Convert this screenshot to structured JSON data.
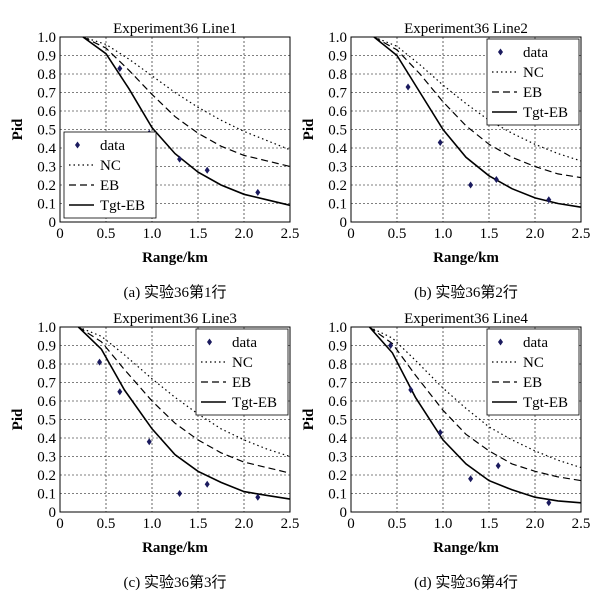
{
  "chart_data": [
    {
      "type": "line",
      "title": "Experiment36 Line1",
      "caption": "(a) 实验36第1行",
      "xlabel": "Range/km",
      "ylabel": "Pid",
      "xlim": [
        0,
        2.5
      ],
      "ylim": [
        0,
        1.0
      ],
      "xticks": [
        "0",
        "0.5",
        "1.0",
        "1.5",
        "2.0",
        "2.5"
      ],
      "yticks": [
        "0",
        "0.1",
        "0.2",
        "0.3",
        "0.4",
        "0.5",
        "0.6",
        "0.7",
        "0.8",
        "0.9",
        "1.0"
      ],
      "grid": true,
      "legend_position": "bottom-left",
      "legend": [
        "data",
        "NC",
        "EB",
        "Tgt-EB"
      ],
      "data_points": {
        "name": "data",
        "x": [
          0.65,
          0.97,
          1.3,
          1.6,
          2.15
        ],
        "y": [
          0.83,
          0.48,
          0.34,
          0.28,
          0.16
        ]
      },
      "series": [
        {
          "name": "NC",
          "style": "dotted",
          "x": [
            0.25,
            0.5,
            0.75,
            1.0,
            1.25,
            1.5,
            1.75,
            2.0,
            2.25,
            2.5
          ],
          "y": [
            1.0,
            0.96,
            0.88,
            0.79,
            0.7,
            0.62,
            0.55,
            0.49,
            0.44,
            0.39
          ]
        },
        {
          "name": "EB",
          "style": "dashed",
          "x": [
            0.25,
            0.5,
            0.75,
            1.0,
            1.25,
            1.5,
            1.75,
            2.0,
            2.25,
            2.5
          ],
          "y": [
            1.0,
            0.94,
            0.82,
            0.69,
            0.57,
            0.48,
            0.41,
            0.36,
            0.33,
            0.3
          ]
        },
        {
          "name": "Tgt-EB",
          "style": "solid",
          "x": [
            0.25,
            0.5,
            0.75,
            1.0,
            1.25,
            1.5,
            1.75,
            2.0,
            2.25,
            2.5
          ],
          "y": [
            1.0,
            0.91,
            0.72,
            0.51,
            0.37,
            0.27,
            0.2,
            0.15,
            0.12,
            0.09
          ]
        }
      ]
    },
    {
      "type": "line",
      "title": "Experiment36 Line2",
      "caption": "(b) 实验36第2行",
      "xlabel": "Range/km",
      "ylabel": "Pid",
      "xlim": [
        0,
        2.5
      ],
      "ylim": [
        0,
        1.0
      ],
      "xticks": [
        "0",
        "0.5",
        "1.0",
        "1.5",
        "2.0",
        "2.5"
      ],
      "yticks": [
        "0",
        "0.1",
        "0.2",
        "0.3",
        "0.4",
        "0.5",
        "0.6",
        "0.7",
        "0.8",
        "0.9",
        "1.0"
      ],
      "grid": true,
      "legend_position": "top-right",
      "legend": [
        "data",
        "NC",
        "EB",
        "Tgt-EB"
      ],
      "data_points": {
        "name": "data",
        "x": [
          0.62,
          0.97,
          1.3,
          1.58,
          2.15
        ],
        "y": [
          0.73,
          0.43,
          0.2,
          0.23,
          0.12
        ]
      },
      "series": [
        {
          "name": "NC",
          "style": "dotted",
          "x": [
            0.25,
            0.5,
            0.75,
            1.0,
            1.25,
            1.5,
            1.75,
            2.0,
            2.25,
            2.5
          ],
          "y": [
            1.0,
            0.95,
            0.85,
            0.74,
            0.64,
            0.55,
            0.48,
            0.42,
            0.37,
            0.33
          ]
        },
        {
          "name": "EB",
          "style": "dashed",
          "x": [
            0.25,
            0.5,
            0.75,
            1.0,
            1.25,
            1.5,
            1.75,
            2.0,
            2.25,
            2.5
          ],
          "y": [
            1.0,
            0.93,
            0.8,
            0.65,
            0.52,
            0.42,
            0.35,
            0.3,
            0.26,
            0.24
          ]
        },
        {
          "name": "Tgt-EB",
          "style": "solid",
          "x": [
            0.25,
            0.5,
            0.75,
            1.0,
            1.25,
            1.5,
            1.75,
            2.0,
            2.25,
            2.5
          ],
          "y": [
            1.0,
            0.9,
            0.7,
            0.5,
            0.35,
            0.25,
            0.18,
            0.13,
            0.1,
            0.08
          ]
        }
      ]
    },
    {
      "type": "line",
      "title": "Experiment36 Line3",
      "caption": "(c) 实验36第3行",
      "xlabel": "Range/km",
      "ylabel": "Pid",
      "xlim": [
        0,
        2.5
      ],
      "ylim": [
        0,
        1.0
      ],
      "xticks": [
        "0",
        "0.5",
        "1.0",
        "1.5",
        "2.0",
        "2.5"
      ],
      "yticks": [
        "0",
        "0.1",
        "0.2",
        "0.3",
        "0.4",
        "0.5",
        "0.6",
        "0.7",
        "0.8",
        "0.9",
        "1.0"
      ],
      "grid": true,
      "legend_position": "top-right",
      "legend": [
        "data",
        "NC",
        "EB",
        "Tgt-EB"
      ],
      "data_points": {
        "name": "data",
        "x": [
          0.43,
          0.65,
          0.97,
          1.3,
          1.6,
          2.15
        ],
        "y": [
          0.81,
          0.65,
          0.38,
          0.1,
          0.15,
          0.08
        ]
      },
      "series": [
        {
          "name": "NC",
          "style": "dotted",
          "x": [
            0.2,
            0.45,
            0.7,
            1.0,
            1.25,
            1.5,
            1.75,
            2.0,
            2.25,
            2.5
          ],
          "y": [
            1.0,
            0.95,
            0.85,
            0.72,
            0.62,
            0.53,
            0.45,
            0.39,
            0.34,
            0.3
          ]
        },
        {
          "name": "EB",
          "style": "dashed",
          "x": [
            0.2,
            0.45,
            0.7,
            1.0,
            1.25,
            1.5,
            1.75,
            2.0,
            2.25,
            2.5
          ],
          "y": [
            1.0,
            0.92,
            0.77,
            0.6,
            0.48,
            0.39,
            0.32,
            0.27,
            0.24,
            0.21
          ]
        },
        {
          "name": "Tgt-EB",
          "style": "solid",
          "x": [
            0.2,
            0.45,
            0.7,
            1.0,
            1.25,
            1.5,
            1.75,
            2.0,
            2.25,
            2.5
          ],
          "y": [
            1.0,
            0.88,
            0.66,
            0.45,
            0.31,
            0.22,
            0.16,
            0.11,
            0.09,
            0.07
          ]
        }
      ]
    },
    {
      "type": "line",
      "title": "Experiment36 Line4",
      "caption": "(d) 实验36第4行",
      "xlabel": "Range/km",
      "ylabel": "Pid",
      "xlim": [
        0,
        2.5
      ],
      "ylim": [
        0,
        1.0
      ],
      "xticks": [
        "0",
        "0.5",
        "1.0",
        "1.5",
        "2.0",
        "2.5"
      ],
      "yticks": [
        "0",
        "0.1",
        "0.2",
        "0.3",
        "0.4",
        "0.5",
        "0.6",
        "0.7",
        "0.8",
        "0.9",
        "1.0"
      ],
      "grid": true,
      "legend_position": "top-right",
      "legend": [
        "data",
        "NC",
        "EB",
        "Tgt-EB"
      ],
      "data_points": {
        "name": "data",
        "x": [
          0.43,
          0.65,
          0.97,
          1.3,
          1.6,
          2.15
        ],
        "y": [
          0.9,
          0.66,
          0.43,
          0.18,
          0.25,
          0.05
        ]
      },
      "series": [
        {
          "name": "NC",
          "style": "dotted",
          "x": [
            0.2,
            0.45,
            0.7,
            1.0,
            1.25,
            1.5,
            1.75,
            2.0,
            2.25,
            2.5
          ],
          "y": [
            1.0,
            0.94,
            0.82,
            0.67,
            0.56,
            0.46,
            0.39,
            0.33,
            0.28,
            0.24
          ]
        },
        {
          "name": "EB",
          "style": "dashed",
          "x": [
            0.2,
            0.45,
            0.7,
            1.0,
            1.25,
            1.5,
            1.75,
            2.0,
            2.25,
            2.5
          ],
          "y": [
            1.0,
            0.91,
            0.74,
            0.55,
            0.42,
            0.33,
            0.26,
            0.22,
            0.19,
            0.17
          ]
        },
        {
          "name": "Tgt-EB",
          "style": "solid",
          "x": [
            0.2,
            0.45,
            0.7,
            1.0,
            1.25,
            1.5,
            1.75,
            2.0,
            2.25,
            2.5
          ],
          "y": [
            1.0,
            0.86,
            0.62,
            0.39,
            0.26,
            0.17,
            0.12,
            0.08,
            0.06,
            0.05
          ]
        }
      ]
    }
  ]
}
